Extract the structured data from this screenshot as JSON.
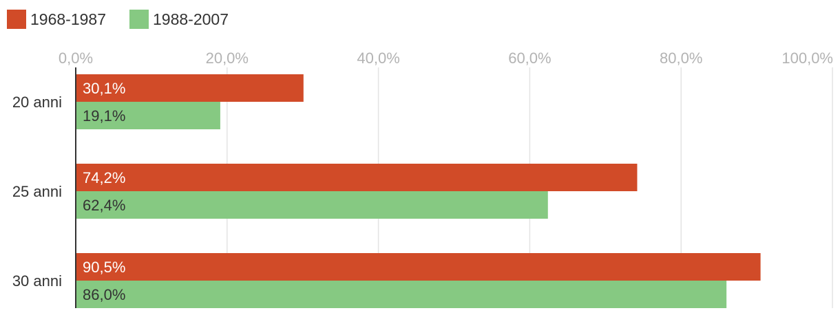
{
  "chart_data": {
    "type": "bar",
    "orientation": "horizontal",
    "categories": [
      "20 anni",
      "25 anni",
      "30 anni"
    ],
    "series": [
      {
        "name": "1968-1987",
        "color": "#d14b28",
        "values": [
          30.1,
          74.2,
          90.5
        ],
        "labels": [
          "30,1%",
          "74,2%",
          "90,5%"
        ]
      },
      {
        "name": "1988-2007",
        "color": "#86c982",
        "values": [
          19.1,
          62.4,
          86.0
        ],
        "labels": [
          "19,1%",
          "62,4%",
          "86,0%"
        ]
      }
    ],
    "xlim": [
      0,
      100
    ],
    "xticks": [
      0,
      20,
      40,
      60,
      80,
      100
    ],
    "xtick_labels": [
      "0,0%",
      "20,0%",
      "40,0%",
      "60,0%",
      "80,0%",
      "100,0%"
    ],
    "grid": true,
    "legend_position": "top-left",
    "axis_position": "top"
  }
}
